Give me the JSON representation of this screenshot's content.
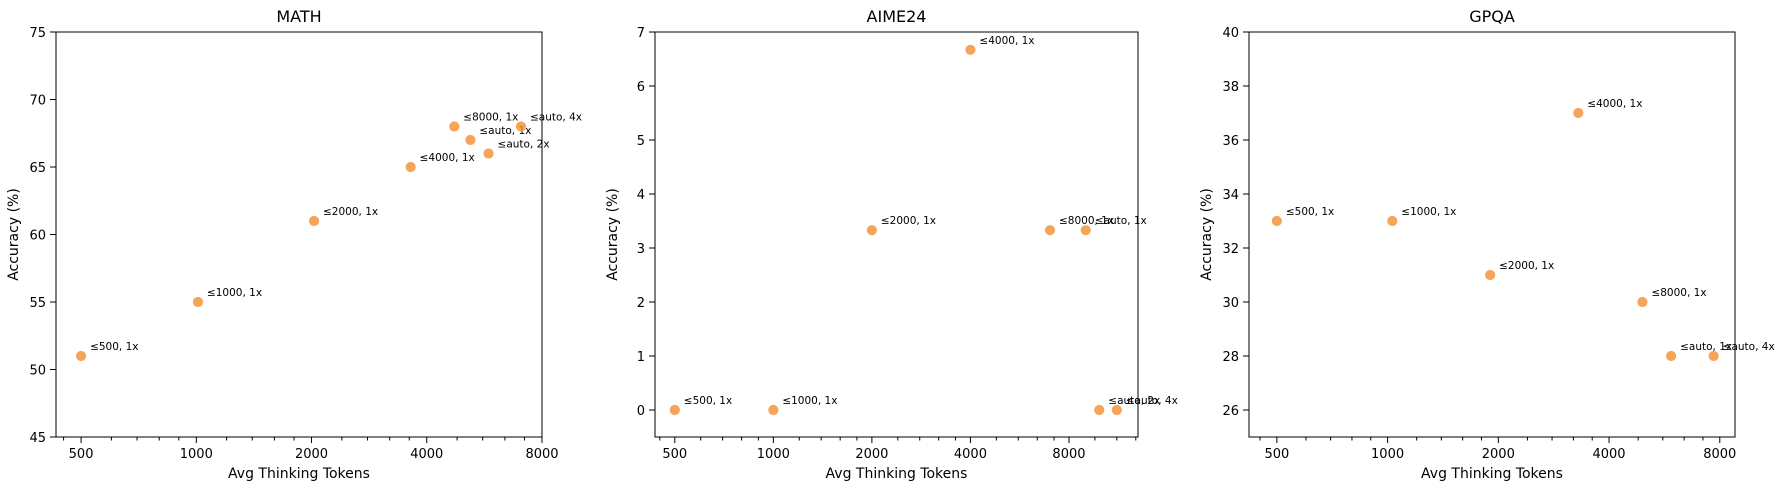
{
  "chart_data": [
    {
      "type": "scatter",
      "title": "MATH",
      "xlabel": "Avg Thinking Tokens",
      "ylabel": "Accuracy (%)",
      "xscale": "log2",
      "xlim": [
        430,
        8000
      ],
      "ylim": [
        45,
        75
      ],
      "xticks": [
        500,
        1000,
        2000,
        4000,
        8000
      ],
      "xtick_labels": [
        "500",
        "1000",
        "2000",
        "4000",
        "8000"
      ],
      "yticks": [
        45,
        50,
        55,
        60,
        65,
        70,
        75
      ],
      "ytick_labels": [
        "45",
        "50",
        "55",
        "60",
        "65",
        "70",
        "75"
      ],
      "grid": false,
      "color": "#f28e2b",
      "points": [
        {
          "label": "≤500, 1x",
          "x": 500,
          "y": 51
        },
        {
          "label": "≤1000, 1x",
          "x": 1010,
          "y": 55
        },
        {
          "label": "≤2000, 1x",
          "x": 2030,
          "y": 61
        },
        {
          "label": "≤4000, 1x",
          "x": 3630,
          "y": 65
        },
        {
          "label": "≤8000, 1x",
          "x": 4720,
          "y": 68
        },
        {
          "label": "≤auto, 1x",
          "x": 5200,
          "y": 67
        },
        {
          "label": "≤auto, 2x",
          "x": 5800,
          "y": 66
        },
        {
          "label": "≤auto, 4x",
          "x": 7050,
          "y": 68
        }
      ]
    },
    {
      "type": "scatter",
      "title": "AIME24",
      "xlabel": "Avg Thinking Tokens",
      "ylabel": "Accuracy (%)",
      "xscale": "log2",
      "xlim": [
        435,
        13000
      ],
      "ylim": [
        -0.5,
        7
      ],
      "xticks": [
        500,
        1000,
        2000,
        4000,
        8000
      ],
      "xtick_labels": [
        "500",
        "1000",
        "2000",
        "4000",
        "8000"
      ],
      "yticks": [
        0,
        1,
        2,
        3,
        4,
        5,
        6,
        7
      ],
      "ytick_labels": [
        "0",
        "1",
        "2",
        "3",
        "4",
        "5",
        "6",
        "7"
      ],
      "grid": false,
      "color": "#f28e2b",
      "points": [
        {
          "label": "≤500, 1x",
          "x": 500,
          "y": 0
        },
        {
          "label": "≤1000, 1x",
          "x": 1000,
          "y": 0
        },
        {
          "label": "≤2000, 1x",
          "x": 2000,
          "y": 3.33
        },
        {
          "label": "≤4000, 1x",
          "x": 4000,
          "y": 6.67
        },
        {
          "label": "≤8000, 1x",
          "x": 7000,
          "y": 3.33
        },
        {
          "label": "≤auto, 1x",
          "x": 9000,
          "y": 3.33
        },
        {
          "label": "≤auto, 2x",
          "x": 9900,
          "y": 0
        },
        {
          "label": "≤auto, 4x",
          "x": 11200,
          "y": 0
        }
      ]
    },
    {
      "type": "scatter",
      "title": "GPQA",
      "xlabel": "Avg Thinking Tokens",
      "ylabel": "Accuracy (%)",
      "xscale": "log2",
      "xlim": [
        420,
        8800
      ],
      "ylim": [
        25,
        40
      ],
      "xticks": [
        500,
        1000,
        2000,
        4000,
        8000
      ],
      "xtick_labels": [
        "500",
        "1000",
        "2000",
        "4000",
        "8000"
      ],
      "yticks": [
        26,
        28,
        30,
        32,
        34,
        36,
        38,
        40
      ],
      "ytick_labels": [
        "26",
        "28",
        "30",
        "32",
        "34",
        "36",
        "38",
        "40"
      ],
      "grid": false,
      "color": "#f28e2b",
      "points": [
        {
          "label": "≤500, 1x",
          "x": 500,
          "y": 33
        },
        {
          "label": "≤1000, 1x",
          "x": 1030,
          "y": 33
        },
        {
          "label": "≤2000, 1x",
          "x": 1900,
          "y": 31
        },
        {
          "label": "≤4000, 1x",
          "x": 3300,
          "y": 37
        },
        {
          "label": "≤8000, 1x",
          "x": 4930,
          "y": 30
        },
        {
          "label": "≤auto, 1x",
          "x": 5900,
          "y": 28
        },
        {
          "label": "≤auto, 4x",
          "x": 7700,
          "y": 28
        }
      ]
    }
  ]
}
